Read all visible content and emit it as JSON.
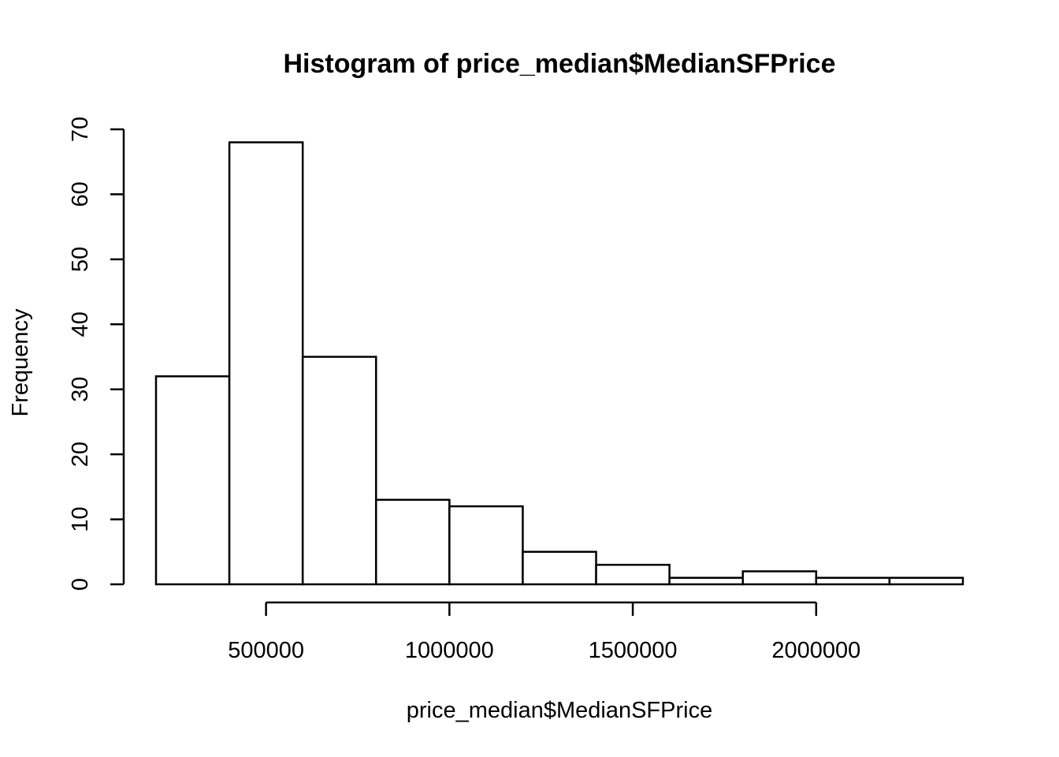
{
  "chart_data": {
    "type": "bar",
    "title": "Histogram of price_median$MedianSFPrice",
    "xlabel": "price_median$MedianSFPrice",
    "ylabel": "Frequency",
    "bins": [
      {
        "x0": 200000,
        "x1": 400000,
        "count": 32
      },
      {
        "x0": 400000,
        "x1": 600000,
        "count": 68
      },
      {
        "x0": 600000,
        "x1": 800000,
        "count": 35
      },
      {
        "x0": 800000,
        "x1": 1000000,
        "count": 13
      },
      {
        "x0": 1000000,
        "x1": 1200000,
        "count": 12
      },
      {
        "x0": 1200000,
        "x1": 1400000,
        "count": 5
      },
      {
        "x0": 1400000,
        "x1": 1600000,
        "count": 3
      },
      {
        "x0": 1600000,
        "x1": 1800000,
        "count": 1
      },
      {
        "x0": 1800000,
        "x1": 2000000,
        "count": 2
      },
      {
        "x0": 2000000,
        "x1": 2200000,
        "count": 1
      },
      {
        "x0": 2200000,
        "x1": 2400000,
        "count": 1
      }
    ],
    "x_ticks": [
      500000,
      1000000,
      1500000,
      2000000
    ],
    "x_tick_labels": [
      "500000",
      "1000000",
      "1500000",
      "2000000"
    ],
    "y_ticks": [
      0,
      10,
      20,
      30,
      40,
      50,
      60,
      70
    ],
    "y_tick_labels": [
      "0",
      "10",
      "20",
      "30",
      "40",
      "50",
      "60",
      "70"
    ],
    "xlim": [
      200000,
      2400000
    ],
    "ylim": [
      0,
      70
    ],
    "grid": false,
    "legend": "none",
    "colors": {
      "bar_fill": "#ffffff",
      "bar_stroke": "#000000",
      "text": "#000000"
    }
  }
}
